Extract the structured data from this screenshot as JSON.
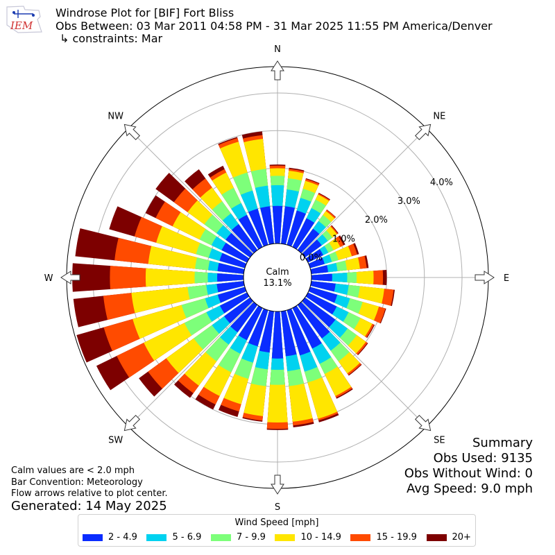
{
  "logo_text": "IEM",
  "title": {
    "line1": "Windrose Plot for [BIF] Fort Bliss",
    "line2": "Obs Between: 03 Mar 2011 04:58 PM - 31 Mar 2025 11:55 PM America/Denver",
    "line3": "↳ constraints: Mar"
  },
  "center": {
    "label": "Calm",
    "value": "13.1%"
  },
  "notes": {
    "calm": "Calm values are < 2.0 mph",
    "convention": "Bar Convention: Meteorology",
    "arrows": "Flow arrows relative to plot center."
  },
  "generated": "Generated: 14 May 2025",
  "summary": {
    "title": "Summary",
    "obs_used": "Obs Used: 9135",
    "obs_without_wind": "Obs Without Wind: 0",
    "avg_speed": "Avg Speed: 9.0 mph"
  },
  "legend": {
    "title": "Wind Speed [mph]",
    "items": [
      {
        "label": "2 - 4.9",
        "color": "#0a2cff"
      },
      {
        "label": "5 - 6.9",
        "color": "#00d2f0"
      },
      {
        "label": "7 - 9.9",
        "color": "#7dff7a"
      },
      {
        "label": "10 - 14.9",
        "color": "#ffe600"
      },
      {
        "label": "15 - 19.9",
        "color": "#ff4b00"
      },
      {
        "label": "20+",
        "color": "#7d0000"
      }
    ]
  },
  "chart_data": {
    "type": "windrose",
    "direction_labels": [
      "N",
      "NE",
      "E",
      "SE",
      "S",
      "SW",
      "W",
      "NW"
    ],
    "radial_ticks": [
      "0.0%",
      "1.0%",
      "2.0%",
      "3.0%",
      "4.0%"
    ],
    "radial_max": 4.7,
    "calm_percent": 13.1,
    "grid": true,
    "bins": [
      "2 - 4.9",
      "5 - 6.9",
      "7 - 9.9",
      "10 - 14.9",
      "15 - 19.9",
      "20+"
    ],
    "directions_deg": [
      0,
      10,
      20,
      30,
      40,
      50,
      60,
      70,
      80,
      90,
      100,
      110,
      120,
      130,
      140,
      150,
      160,
      170,
      180,
      190,
      200,
      210,
      220,
      230,
      240,
      250,
      260,
      270,
      280,
      290,
      300,
      310,
      320,
      330,
      340,
      350
    ],
    "cumulative_percent": [
      [
        1.0,
        1.55,
        1.8,
        2.0,
        2.07,
        2.1
      ],
      [
        1.0,
        1.45,
        1.75,
        1.95,
        2.0,
        2.03
      ],
      [
        0.95,
        1.3,
        1.55,
        1.77,
        1.82,
        1.84
      ],
      [
        0.85,
        1.15,
        1.4,
        1.55,
        1.58,
        1.6
      ],
      [
        0.7,
        0.95,
        1.15,
        1.28,
        1.32,
        1.33
      ],
      [
        0.55,
        0.75,
        0.9,
        1.05,
        1.08,
        1.1
      ],
      [
        0.45,
        0.6,
        0.75,
        0.95,
        1.05,
        1.1
      ],
      [
        0.4,
        0.6,
        0.78,
        1.15,
        1.3,
        1.35
      ],
      [
        0.45,
        0.7,
        0.95,
        1.3,
        1.48,
        1.53
      ],
      [
        0.55,
        0.95,
        1.2,
        1.65,
        1.9,
        2.0
      ],
      [
        0.65,
        1.0,
        1.3,
        1.95,
        2.2,
        2.23
      ],
      [
        0.75,
        1.1,
        1.45,
        1.9,
        2.08,
        2.1
      ],
      [
        0.85,
        1.2,
        1.55,
        1.9,
        1.95,
        1.97
      ],
      [
        1.0,
        1.4,
        1.7,
        2.0,
        2.05,
        2.07
      ],
      [
        1.1,
        1.5,
        1.85,
        2.25,
        2.3,
        2.32
      ],
      [
        1.2,
        1.65,
        1.95,
        2.6,
        2.65,
        2.68
      ],
      [
        1.25,
        1.7,
        2.0,
        3.0,
        3.05,
        3.1
      ],
      [
        1.2,
        1.6,
        2.0,
        2.95,
        3.05,
        3.1
      ],
      [
        1.25,
        1.55,
        1.95,
        2.95,
        3.12,
        3.15
      ],
      [
        1.1,
        1.55,
        2.0,
        2.8,
        2.92,
        2.95
      ],
      [
        1.0,
        1.45,
        1.9,
        2.6,
        2.8,
        2.95
      ],
      [
        0.95,
        1.35,
        1.9,
        2.6,
        2.85,
        3.0
      ],
      [
        0.9,
        1.3,
        1.85,
        2.65,
        2.9,
        3.05
      ],
      [
        0.85,
        1.25,
        1.85,
        2.75,
        3.35,
        3.65
      ],
      [
        0.8,
        1.2,
        1.85,
        3.05,
        3.85,
        4.45
      ],
      [
        0.75,
        1.1,
        1.75,
        3.1,
        3.9,
        4.65
      ],
      [
        0.72,
        1.0,
        1.5,
        3.0,
        3.75,
        4.55
      ],
      [
        0.7,
        0.95,
        1.3,
        2.6,
        3.55,
        4.55
      ],
      [
        0.7,
        0.95,
        1.3,
        2.55,
        3.45,
        4.5
      ],
      [
        0.7,
        1.0,
        1.35,
        2.45,
        3.05,
        3.75
      ],
      [
        0.75,
        1.05,
        1.4,
        2.2,
        2.7,
        3.0
      ],
      [
        0.8,
        1.1,
        1.5,
        2.05,
        2.5,
        3.1
      ],
      [
        0.85,
        1.2,
        1.6,
        2.05,
        2.35,
        2.65
      ],
      [
        0.95,
        1.3,
        1.75,
        2.2,
        2.3,
        2.4
      ],
      [
        1.0,
        1.5,
        2.0,
        2.85,
        2.95,
        2.98
      ],
      [
        1.0,
        1.55,
        2.0,
        2.8,
        2.9,
        3.0
      ]
    ]
  }
}
